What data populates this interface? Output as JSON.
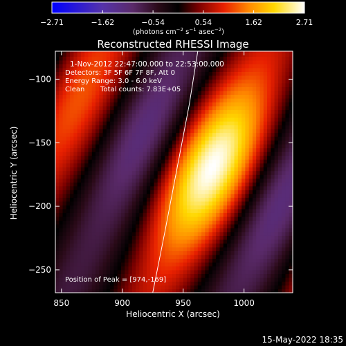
{
  "chart_data": {
    "type": "heatmap",
    "title": "Reconstructed RHESSI Image",
    "xlabel": "Heliocentric X (arcsec)",
    "ylabel": "Heliocentric Y (arcsec)",
    "xlim": [
      845,
      1040
    ],
    "ylim": [
      -268,
      -78
    ],
    "xticks": [
      850,
      900,
      950,
      1000
    ],
    "xtick_labels": [
      "850",
      "900",
      "950",
      "1000"
    ],
    "yticks": [
      -100,
      -150,
      -200,
      -250
    ],
    "ytick_labels": [
      "−100",
      "−150",
      "−200",
      "−250"
    ],
    "colorbar": {
      "min": -2.71,
      "max": 2.71,
      "ticks": [
        -2.71,
        -1.62,
        -0.54,
        0.54,
        1.62,
        2.71
      ],
      "tick_labels": [
        "−2.71",
        "−1.62",
        "−0.54",
        "0.54",
        "1.62",
        "2.71"
      ],
      "label_main": "(photons cm",
      "label_exp1": "−2",
      "label_mid": " s",
      "label_exp2": "−1",
      "label_end": " asec",
      "label_exp3": "−2",
      "label_close": ")",
      "colormap": "red-temperature-diverging"
    },
    "model": {
      "peak_x": 974,
      "peak_y": -169,
      "peak_value": 2.71,
      "core_sigma_along": 48,
      "core_sigma_across": 27,
      "axis_angle_deg": 63,
      "fringe_period": 122,
      "fringe_phase": 0
    },
    "limb_curve": {
      "x": [
        925,
        935,
        945,
        955,
        962
      ],
      "y": [
        -268,
        -220,
        -170,
        -120,
        -78
      ]
    },
    "annotations": {
      "time_range": "1-Nov-2012 22:47:00.000 to 22:53:00.000",
      "detectors": "Detectors: 3F 5F 6F 7F 8F, Att 0",
      "energy_range": "Energy Range: 3.0 - 6.0 keV",
      "method": "Clean",
      "total_counts": "Total counts: 7.83E+05",
      "peak_position": "Position of Peak = [974,-169]"
    },
    "grid": false,
    "timestamp": "15-May-2022 18:35"
  },
  "colors": {
    "background": "#000000",
    "text": "#ffffff",
    "limb": "#ffffff"
  }
}
